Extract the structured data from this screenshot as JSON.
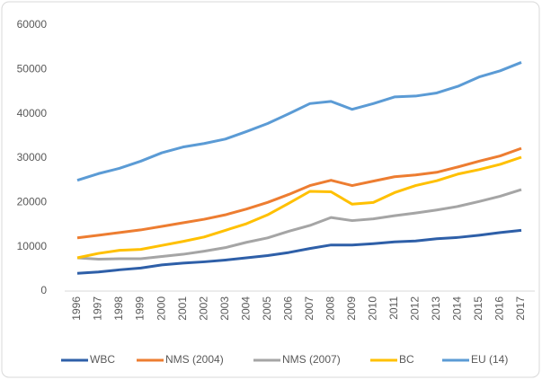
{
  "chart_data": {
    "type": "line",
    "categories": [
      "1996",
      "1997",
      "1998",
      "1999",
      "2000",
      "2001",
      "2002",
      "2003",
      "2004",
      "2005",
      "2006",
      "2007",
      "2008",
      "2009",
      "2010",
      "2011",
      "2012",
      "2013",
      "2014",
      "2015",
      "2016",
      "2017"
    ],
    "series": [
      {
        "name": "WBC",
        "color": "#2e5fa8",
        "values": [
          4000,
          4300,
          4800,
          5200,
          5900,
          6300,
          6600,
          7000,
          7500,
          8000,
          8700,
          9600,
          10400,
          10400,
          10700,
          11100,
          11300,
          11800,
          12100,
          12600,
          13200,
          13700
        ]
      },
      {
        "name": "NMS (2004)",
        "color": "#ed7d31",
        "values": [
          12000,
          12600,
          13200,
          13800,
          14600,
          15400,
          16200,
          17200,
          18500,
          20000,
          21800,
          23800,
          25000,
          23800,
          24800,
          25800,
          26200,
          26800,
          28000,
          29300,
          30500,
          32200
        ]
      },
      {
        "name": "NMS (2007)",
        "color": "#a5a5a5",
        "values": [
          7500,
          7200,
          7300,
          7300,
          7800,
          8300,
          9000,
          9800,
          11000,
          12000,
          13500,
          14800,
          16600,
          15900,
          16300,
          17000,
          17600,
          18300,
          19100,
          20200,
          21400,
          22900
        ]
      },
      {
        "name": "BC",
        "color": "#ffc000",
        "values": [
          7500,
          8500,
          9200,
          9400,
          10300,
          11200,
          12200,
          13700,
          15200,
          17200,
          19800,
          22500,
          22400,
          19600,
          20000,
          22200,
          23800,
          24900,
          26400,
          27400,
          28600,
          30200
        ]
      },
      {
        "name": "EU (14)",
        "color": "#5b9bd5",
        "values": [
          25000,
          26500,
          27700,
          29300,
          31200,
          32500,
          33300,
          34300,
          36000,
          37800,
          40000,
          42300,
          42800,
          41000,
          42300,
          43800,
          44000,
          44700,
          46200,
          48300,
          49700,
          51600
        ]
      }
    ],
    "ylim": [
      0,
      60000
    ],
    "yticks": [
      0,
      10000,
      20000,
      30000,
      40000,
      50000,
      60000
    ],
    "grid": false,
    "legend": "bottom"
  }
}
